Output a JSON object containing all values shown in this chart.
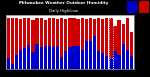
{
  "title1": "Milwaukee Weather Outdoor Humidity",
  "title2": "Daily High/Low",
  "highs": [
    98,
    98,
    98,
    97,
    98,
    98,
    95,
    98,
    98,
    94,
    98,
    98,
    97,
    98,
    96,
    98,
    98,
    97,
    98,
    97,
    98,
    97,
    98,
    97,
    98,
    98,
    83,
    95,
    88,
    98,
    72
  ],
  "lows": [
    22,
    10,
    28,
    37,
    40,
    46,
    34,
    48,
    42,
    45,
    45,
    43,
    44,
    23,
    35,
    42,
    45,
    44,
    38,
    55,
    55,
    65,
    35,
    32,
    25,
    22,
    35,
    28,
    48,
    38,
    25
  ],
  "labels": [
    "1",
    "",
    "3",
    "",
    "5",
    "",
    "7",
    "",
    "9",
    "",
    "11",
    "",
    "13",
    "",
    "15",
    "",
    "17",
    "",
    "19",
    "",
    "21",
    "",
    "23",
    "",
    "25",
    "",
    "27",
    "",
    "29",
    "",
    "31"
  ],
  "high_color": "#cc0000",
  "low_color": "#0000cc",
  "background": "#000000",
  "plot_bg": "#ffffff",
  "ylim": [
    0,
    104
  ],
  "ylabel_right": [
    "20",
    "40",
    "60",
    "80",
    "100"
  ],
  "ylabel_right_vals": [
    20,
    40,
    60,
    80,
    100
  ],
  "dotted_bar_index": 25,
  "bar_width": 0.8
}
